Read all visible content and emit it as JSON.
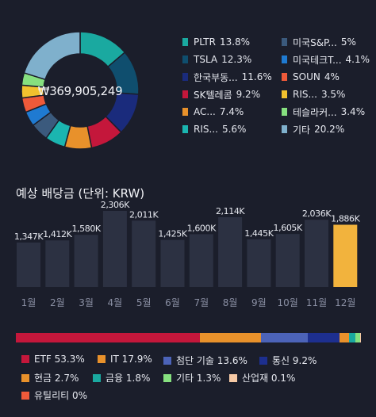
{
  "portfolio": {
    "total_value": "₩369,905,249",
    "holdings": [
      {
        "name": "PLTR",
        "percent": "13.8%",
        "value": 13.8,
        "color": "#1aa9a0"
      },
      {
        "name": "TSLA",
        "percent": "12.3%",
        "value": 12.3,
        "color": "#0f4e6e"
      },
      {
        "name": "한국부동...",
        "percent": "11.6%",
        "value": 11.6,
        "color": "#1a2b7c"
      },
      {
        "name": "SK텔레콤",
        "percent": "9.2%",
        "value": 9.2,
        "color": "#c4173b"
      },
      {
        "name": "AC...",
        "percent": "7.4%",
        "value": 7.4,
        "color": "#e8912b"
      },
      {
        "name": "RIS...",
        "percent": "5.6%",
        "value": 5.6,
        "color": "#1bb5b0"
      },
      {
        "name": "미국S&P...",
        "percent": "5%",
        "value": 5.0,
        "color": "#3b5a7d"
      },
      {
        "name": "미국테크T...",
        "percent": "4.1%",
        "value": 4.1,
        "color": "#1f7ad1"
      },
      {
        "name": "SOUN",
        "percent": "4%",
        "value": 4.0,
        "color": "#ef5a3a"
      },
      {
        "name": "RIS...",
        "percent": "3.5%",
        "value": 3.5,
        "color": "#f2c12e"
      },
      {
        "name": "테슬라커...",
        "percent": "3.4%",
        "value": 3.4,
        "color": "#86e07f"
      },
      {
        "name": "기타",
        "percent": "20.2%",
        "value": 20.2,
        "color": "#7fb0cc"
      }
    ]
  },
  "dividend": {
    "title": "예상 배당금 (단위: KRW)",
    "chart_data": {
      "type": "bar",
      "title": "예상 배당금 (단위: KRW)",
      "categories": [
        "1월",
        "2월",
        "3월",
        "4월",
        "5월",
        "6월",
        "7월",
        "8월",
        "9월",
        "10월",
        "11월",
        "12월"
      ],
      "values": [
        1347,
        1412,
        1580,
        2306,
        2011,
        1425,
        1600,
        2114,
        1445,
        1605,
        2036,
        1886
      ],
      "labels": [
        "1,347K",
        "1,412K",
        "1,580K",
        "2,306K",
        "2,011K",
        "1,425K",
        "1,600K",
        "2,114K",
        "1,445K",
        "1,605K",
        "2,036K",
        "1,886K"
      ],
      "highlight_index": 11,
      "bar_color": "#2c3142",
      "highlight_color": "#f2b33d"
    }
  },
  "sectors": [
    {
      "name": "ETF",
      "percent": "53.3%",
      "value": 53.3,
      "color": "#c4173b"
    },
    {
      "name": "IT",
      "percent": "17.9%",
      "value": 17.9,
      "color": "#e8912b"
    },
    {
      "name": "첨단 기술",
      "percent": "13.6%",
      "value": 13.6,
      "color": "#4c63b8"
    },
    {
      "name": "통신",
      "percent": "9.2%",
      "value": 9.2,
      "color": "#1d2f8f"
    },
    {
      "name": "현금",
      "percent": "2.7%",
      "value": 2.7,
      "color": "#e8912b"
    },
    {
      "name": "금융",
      "percent": "1.8%",
      "value": 1.8,
      "color": "#1aa9a0"
    },
    {
      "name": "기타",
      "percent": "1.3%",
      "value": 1.3,
      "color": "#86e07f"
    },
    {
      "name": "산업재",
      "percent": "0.1%",
      "value": 0.1,
      "color": "#f6c9a5"
    },
    {
      "name": "유틸리티",
      "percent": "0%",
      "value": 0.0,
      "color": "#ef5a3a"
    }
  ]
}
